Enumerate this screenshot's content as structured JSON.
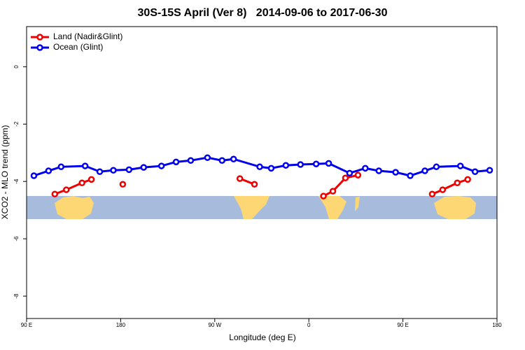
{
  "chart_data": {
    "type": "line",
    "title": "30S-15S April (Ver 8)   2014-09-06 to 2017-06-30",
    "xlabel": "Longitude (deg E)",
    "ylabel": "XCO2 - MLO trend (ppm)",
    "xlim": [
      90,
      540
    ],
    "ylim": [
      -8.78,
      1.4
    ],
    "xticks": [
      {
        "value": 90,
        "label": "90 E"
      },
      180,
      {
        "value": 270,
        "label": "90 W"
      },
      {
        "value": 360,
        "label": "0"
      },
      {
        "value": 450,
        "label": "90 E"
      },
      {
        "value": 540,
        "label": "180"
      }
    ],
    "yticks": [
      0,
      -2,
      -4,
      -6,
      -8
    ],
    "legend": "top-left",
    "series": [
      {
        "name": "Land (Nadir&Glint)",
        "color": "#ee0000",
        "x": [
          117,
          128,
          143,
          152,
          null,
          182,
          null,
          294,
          308,
          null,
          374,
          383,
          395,
          407,
          null,
          478,
          488,
          502,
          512
        ],
        "values": [
          -4.44,
          -4.29,
          -4.05,
          -3.93,
          null,
          -4.1,
          null,
          -3.9,
          -4.1,
          null,
          -4.51,
          -4.34,
          -3.88,
          -3.78,
          null,
          -4.44,
          -4.29,
          -4.05,
          -3.93
        ]
      },
      {
        "name": "Ocean (Glint)",
        "color": "#0000ee",
        "x": [
          97,
          111,
          123,
          146,
          160,
          173,
          188,
          202,
          219,
          233,
          247,
          263,
          277,
          288,
          313,
          324,
          338,
          352,
          367,
          379,
          399,
          414,
          427,
          443,
          457,
          471,
          482,
          505,
          519,
          533
        ],
        "values": [
          -3.8,
          -3.63,
          -3.49,
          -3.46,
          -3.66,
          -3.61,
          -3.59,
          -3.51,
          -3.46,
          -3.32,
          -3.27,
          -3.17,
          -3.27,
          -3.22,
          -3.49,
          -3.54,
          -3.44,
          -3.41,
          -3.39,
          -3.37,
          -3.71,
          -3.54,
          -3.63,
          -3.68,
          -3.8,
          -3.63,
          -3.49,
          -3.46,
          -3.66,
          -3.61
        ]
      }
    ]
  }
}
